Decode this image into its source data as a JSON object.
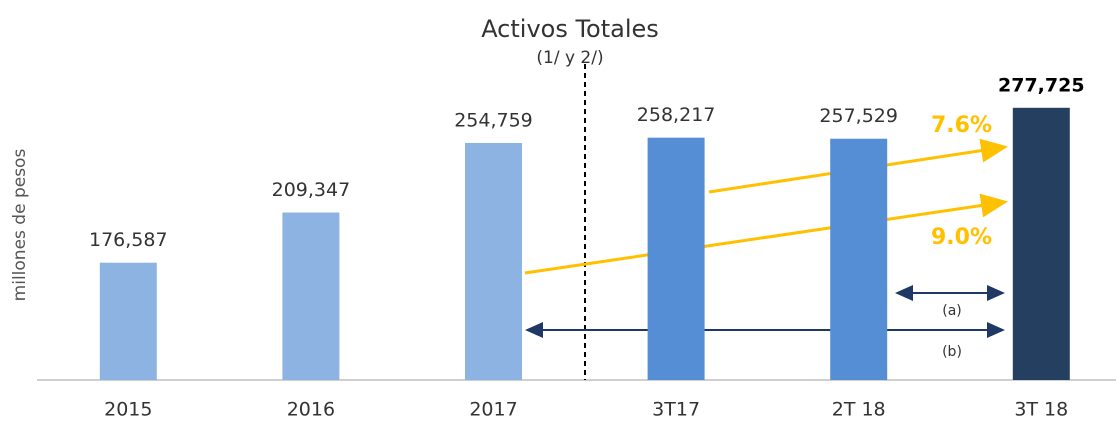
{
  "chart_data": {
    "type": "bar",
    "title": "Activos Totales",
    "subtitle": "(1/ y 2/)",
    "y_label": "millones de pesos",
    "categories": [
      "2015",
      "2016",
      "2017",
      "3T17",
      "2T 18",
      "3T 18"
    ],
    "values": [
      176587,
      209347,
      254759,
      258217,
      257529,
      277725
    ],
    "value_labels": [
      "176,587",
      "209,347",
      "254,759",
      "258,217",
      "257,529",
      "277,725"
    ],
    "colors": [
      "#8db3e2",
      "#8db3e2",
      "#8db3e2",
      "#558ed5",
      "#558ed5",
      "#243f60"
    ],
    "ylim": [
      100000,
      290000
    ],
    "annotations": [
      "7.6%",
      "9.0%",
      "(a)",
      "(b)"
    ]
  }
}
